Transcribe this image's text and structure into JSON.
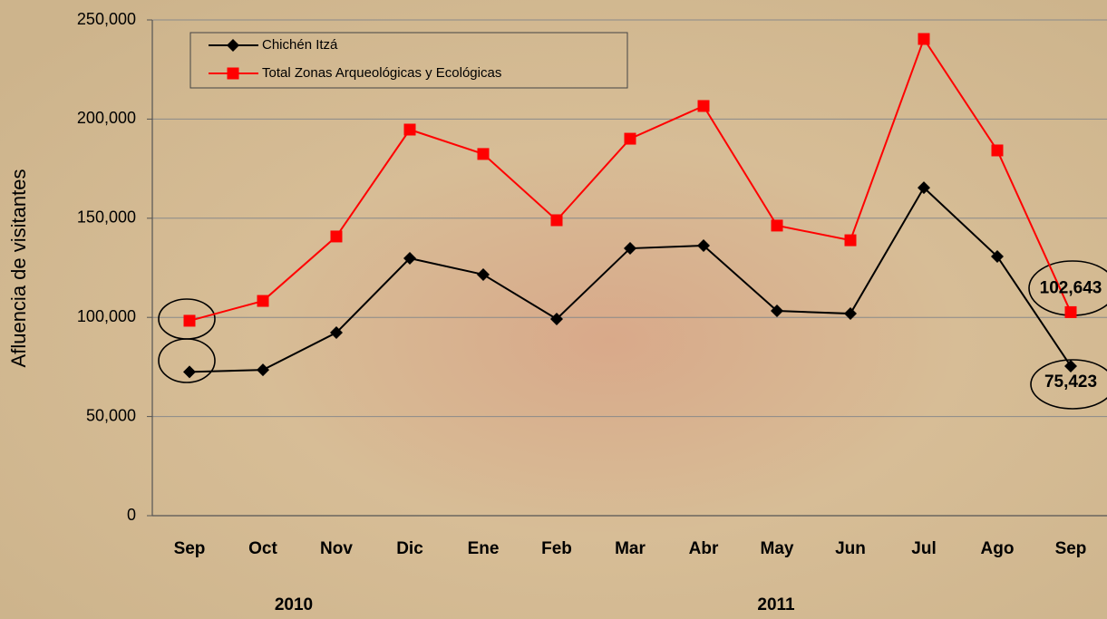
{
  "chart_data": {
    "type": "line",
    "y_label": "Afluencia de visitantes",
    "categories": [
      "Sep",
      "Oct",
      "Nov",
      "Dic",
      "Ene",
      "Feb",
      "Mar",
      "Abr",
      "May",
      "Jun",
      "Jul",
      "Ago",
      "Sep"
    ],
    "year_labels": [
      "2010",
      "2011"
    ],
    "series": [
      {
        "name": "Chichén Itzá",
        "color": "#000000",
        "marker": "diamond",
        "values": [
          72500,
          73500,
          92300,
          129800,
          121600,
          99200,
          134800,
          136200,
          103300,
          101900,
          165400,
          130700,
          75423
        ],
        "value_labels": [
          null,
          null,
          null,
          null,
          null,
          null,
          null,
          null,
          null,
          null,
          null,
          null,
          "75,423"
        ]
      },
      {
        "name": "Total Zonas Arqueológicas y Ecológicas",
        "color": "#ff0000",
        "marker": "square",
        "values": [
          98300,
          108300,
          140800,
          194700,
          182400,
          149000,
          190100,
          206600,
          146300,
          138900,
          240400,
          184200,
          102643
        ],
        "value_labels": [
          null,
          null,
          null,
          null,
          null,
          null,
          null,
          null,
          null,
          null,
          null,
          null,
          "102,643"
        ]
      }
    ],
    "ylim": [
      0,
      250000
    ],
    "yticks": [
      0,
      {
        "value": 50000,
        "label": "50,000"
      },
      {
        "value": 100000,
        "label": "100,000"
      },
      {
        "value": 150000,
        "label": "150,000"
      },
      {
        "value": 200000,
        "label": "200,000"
      },
      {
        "value": 250000,
        "label": "250,000"
      }
    ],
    "grid": true
  }
}
